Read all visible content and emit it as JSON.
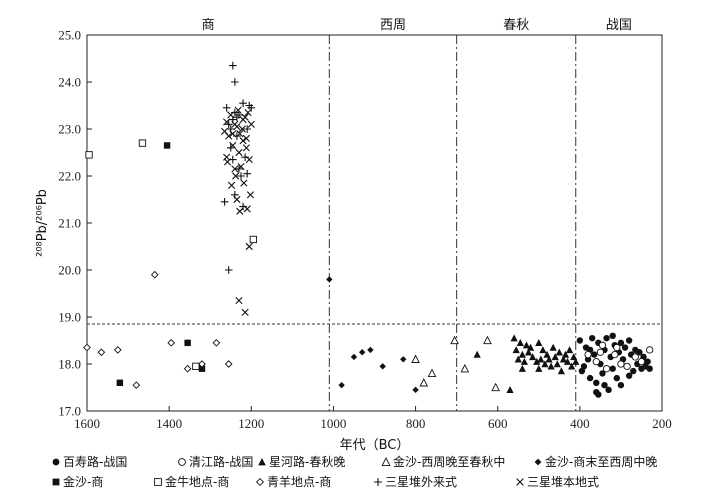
{
  "chart_data": {
    "type": "scatter",
    "xlabel": "年代（BC）",
    "ylabel": "²⁰⁸Pb/²⁰⁶Pb",
    "xlim": [
      1600,
      200
    ],
    "ylim": [
      17.0,
      25.0
    ],
    "x_ticks": [
      1600,
      1400,
      1200,
      1000,
      800,
      600,
      400,
      200
    ],
    "y_ticks": [
      17.0,
      18.0,
      19.0,
      20.0,
      21.0,
      22.0,
      23.0,
      24.0,
      25.0
    ],
    "reference_line_y": 18.85,
    "period_boundaries": [
      1010,
      700,
      410
    ],
    "periods": [
      {
        "label": "商",
        "center": 1305
      },
      {
        "label": "西周",
        "center": 855
      },
      {
        "label": "春秋",
        "center": 555
      },
      {
        "label": "战国",
        "center": 305
      }
    ],
    "legend_placement": "bottom",
    "series": [
      {
        "name": "百寿路-战国",
        "marker": "filled-circle",
        "points": [
          [
            400,
            18.5
          ],
          [
            395,
            17.85
          ],
          [
            390,
            17.95
          ],
          [
            385,
            18.35
          ],
          [
            380,
            18.1
          ],
          [
            375,
            17.7
          ],
          [
            370,
            18.55
          ],
          [
            365,
            18.2
          ],
          [
            360,
            17.6
          ],
          [
            355,
            18.45
          ],
          [
            350,
            18.0
          ],
          [
            345,
            17.8
          ],
          [
            340,
            18.3
          ],
          [
            335,
            18.55
          ],
          [
            330,
            17.45
          ],
          [
            325,
            18.15
          ],
          [
            320,
            17.9
          ],
          [
            315,
            18.4
          ],
          [
            310,
            17.7
          ],
          [
            305,
            18.25
          ],
          [
            300,
            17.55
          ],
          [
            295,
            18.1
          ],
          [
            290,
            18.35
          ],
          [
            285,
            17.95
          ],
          [
            280,
            18.5
          ],
          [
            275,
            18.2
          ],
          [
            270,
            17.85
          ],
          [
            265,
            18.3
          ],
          [
            260,
            18.0
          ],
          [
            255,
            18.25
          ],
          [
            250,
            17.9
          ],
          [
            245,
            18.15
          ],
          [
            240,
            17.95
          ],
          [
            235,
            18.05
          ],
          [
            230,
            17.9
          ],
          [
            360,
            17.4
          ],
          [
            340,
            17.55
          ],
          [
            320,
            18.6
          ],
          [
            375,
            18.3
          ],
          [
            355,
            17.35
          ],
          [
            300,
            18.45
          ],
          [
            280,
            17.75
          ]
        ]
      },
      {
        "name": "清江路-战国",
        "marker": "open-circle",
        "points": [
          [
            380,
            18.2
          ],
          [
            360,
            18.05
          ],
          [
            345,
            18.4
          ],
          [
            335,
            17.9
          ],
          [
            315,
            18.2
          ],
          [
            300,
            18.0
          ],
          [
            285,
            17.95
          ],
          [
            265,
            18.15
          ],
          [
            250,
            18.05
          ],
          [
            230,
            18.3
          ],
          [
            350,
            18.25
          ],
          [
            310,
            18.35
          ]
        ]
      },
      {
        "name": "星河路-春秋晚",
        "marker": "filled-triangle",
        "points": [
          [
            650,
            18.2
          ],
          [
            570,
            17.45
          ],
          [
            560,
            18.55
          ],
          [
            555,
            18.3
          ],
          [
            550,
            18.1
          ],
          [
            545,
            18.45
          ],
          [
            540,
            18.2
          ],
          [
            535,
            18.05
          ],
          [
            530,
            18.4
          ],
          [
            525,
            18.25
          ],
          [
            515,
            18.15
          ],
          [
            505,
            18.05
          ],
          [
            500,
            17.9
          ],
          [
            495,
            18.1
          ],
          [
            490,
            18.3
          ],
          [
            485,
            18.0
          ],
          [
            480,
            18.2
          ],
          [
            475,
            18.1
          ],
          [
            470,
            17.95
          ],
          [
            465,
            18.35
          ],
          [
            460,
            18.15
          ],
          [
            455,
            18.0
          ],
          [
            450,
            18.25
          ],
          [
            445,
            17.85
          ],
          [
            440,
            18.1
          ],
          [
            435,
            18.2
          ],
          [
            430,
            18.05
          ],
          [
            425,
            18.3
          ],
          [
            420,
            17.95
          ],
          [
            415,
            18.15
          ],
          [
            410,
            18.05
          ],
          [
            540,
            17.9
          ],
          [
            520,
            18.35
          ],
          [
            500,
            18.45
          ]
        ]
      },
      {
        "name": "金沙-西周晚至春秋中",
        "marker": "open-triangle",
        "points": [
          [
            800,
            18.1
          ],
          [
            760,
            17.8
          ],
          [
            705,
            18.5
          ],
          [
            680,
            17.9
          ],
          [
            625,
            18.5
          ],
          [
            605,
            17.5
          ],
          [
            780,
            17.6
          ]
        ]
      },
      {
        "name": "金沙-商末至西周中晚",
        "marker": "filled-diamond",
        "points": [
          [
            1010,
            19.8
          ],
          [
            980,
            17.55
          ],
          [
            950,
            18.15
          ],
          [
            930,
            18.25
          ],
          [
            910,
            18.3
          ],
          [
            880,
            17.95
          ],
          [
            830,
            18.1
          ],
          [
            800,
            17.45
          ]
        ]
      },
      {
        "name": "金沙-商",
        "marker": "filled-square",
        "points": [
          [
            1520,
            17.6
          ],
          [
            1405,
            22.65
          ],
          [
            1355,
            18.45
          ],
          [
            1320,
            17.9
          ]
        ]
      },
      {
        "name": "金牛地点-商",
        "marker": "open-square",
        "points": [
          [
            1595,
            22.45
          ],
          [
            1465,
            22.7
          ],
          [
            1335,
            17.95
          ],
          [
            1195,
            20.65
          ]
        ]
      },
      {
        "name": "青羊地点-商",
        "marker": "open-diamond",
        "points": [
          [
            1600,
            18.35
          ],
          [
            1565,
            18.25
          ],
          [
            1525,
            18.3
          ],
          [
            1480,
            17.55
          ],
          [
            1435,
            19.9
          ],
          [
            1395,
            18.45
          ],
          [
            1355,
            17.9
          ],
          [
            1320,
            18.0
          ],
          [
            1285,
            18.45
          ],
          [
            1255,
            18.0
          ]
        ]
      },
      {
        "name": "三星堆外来式",
        "marker": "plus",
        "points": [
          [
            1255,
            20.0
          ],
          [
            1245,
            24.35
          ],
          [
            1240,
            24.0
          ],
          [
            1265,
            21.45
          ],
          [
            1260,
            23.45
          ],
          [
            1255,
            23.1
          ],
          [
            1250,
            22.6
          ],
          [
            1245,
            22.35
          ],
          [
            1240,
            21.6
          ],
          [
            1235,
            22.85
          ],
          [
            1230,
            23.3
          ],
          [
            1225,
            22.0
          ],
          [
            1220,
            23.55
          ],
          [
            1215,
            22.4
          ],
          [
            1210,
            22.05
          ],
          [
            1205,
            23.5
          ],
          [
            1200,
            23.45
          ],
          [
            1245,
            23.2
          ],
          [
            1235,
            23.25
          ],
          [
            1220,
            21.35
          ],
          [
            1230,
            22.15
          ],
          [
            1210,
            23.0
          ],
          [
            1250,
            23.0
          ],
          [
            1240,
            23.35
          ]
        ]
      },
      {
        "name": "三星堆本地式",
        "marker": "cross",
        "points": [
          [
            1205,
            20.5
          ],
          [
            1215,
            19.1
          ],
          [
            1230,
            19.35
          ],
          [
            1265,
            22.95
          ],
          [
            1260,
            23.15
          ],
          [
            1258,
            22.3
          ],
          [
            1255,
            22.85
          ],
          [
            1250,
            23.3
          ],
          [
            1248,
            21.8
          ],
          [
            1245,
            22.65
          ],
          [
            1240,
            23.1
          ],
          [
            1238,
            22.0
          ],
          [
            1235,
            21.5
          ],
          [
            1232,
            23.4
          ],
          [
            1230,
            22.5
          ],
          [
            1228,
            21.25
          ],
          [
            1225,
            22.2
          ],
          [
            1222,
            23.0
          ],
          [
            1220,
            22.75
          ],
          [
            1218,
            21.85
          ],
          [
            1215,
            23.25
          ],
          [
            1212,
            22.6
          ],
          [
            1210,
            21.3
          ],
          [
            1208,
            23.35
          ],
          [
            1205,
            22.35
          ],
          [
            1202,
            21.6
          ],
          [
            1200,
            23.1
          ],
          [
            1245,
            22.9
          ],
          [
            1240,
            22.15
          ],
          [
            1235,
            23.05
          ],
          [
            1228,
            22.9
          ],
          [
            1220,
            23.2
          ],
          [
            1260,
            22.4
          ],
          [
            1212,
            22.8
          ]
        ]
      }
    ]
  }
}
